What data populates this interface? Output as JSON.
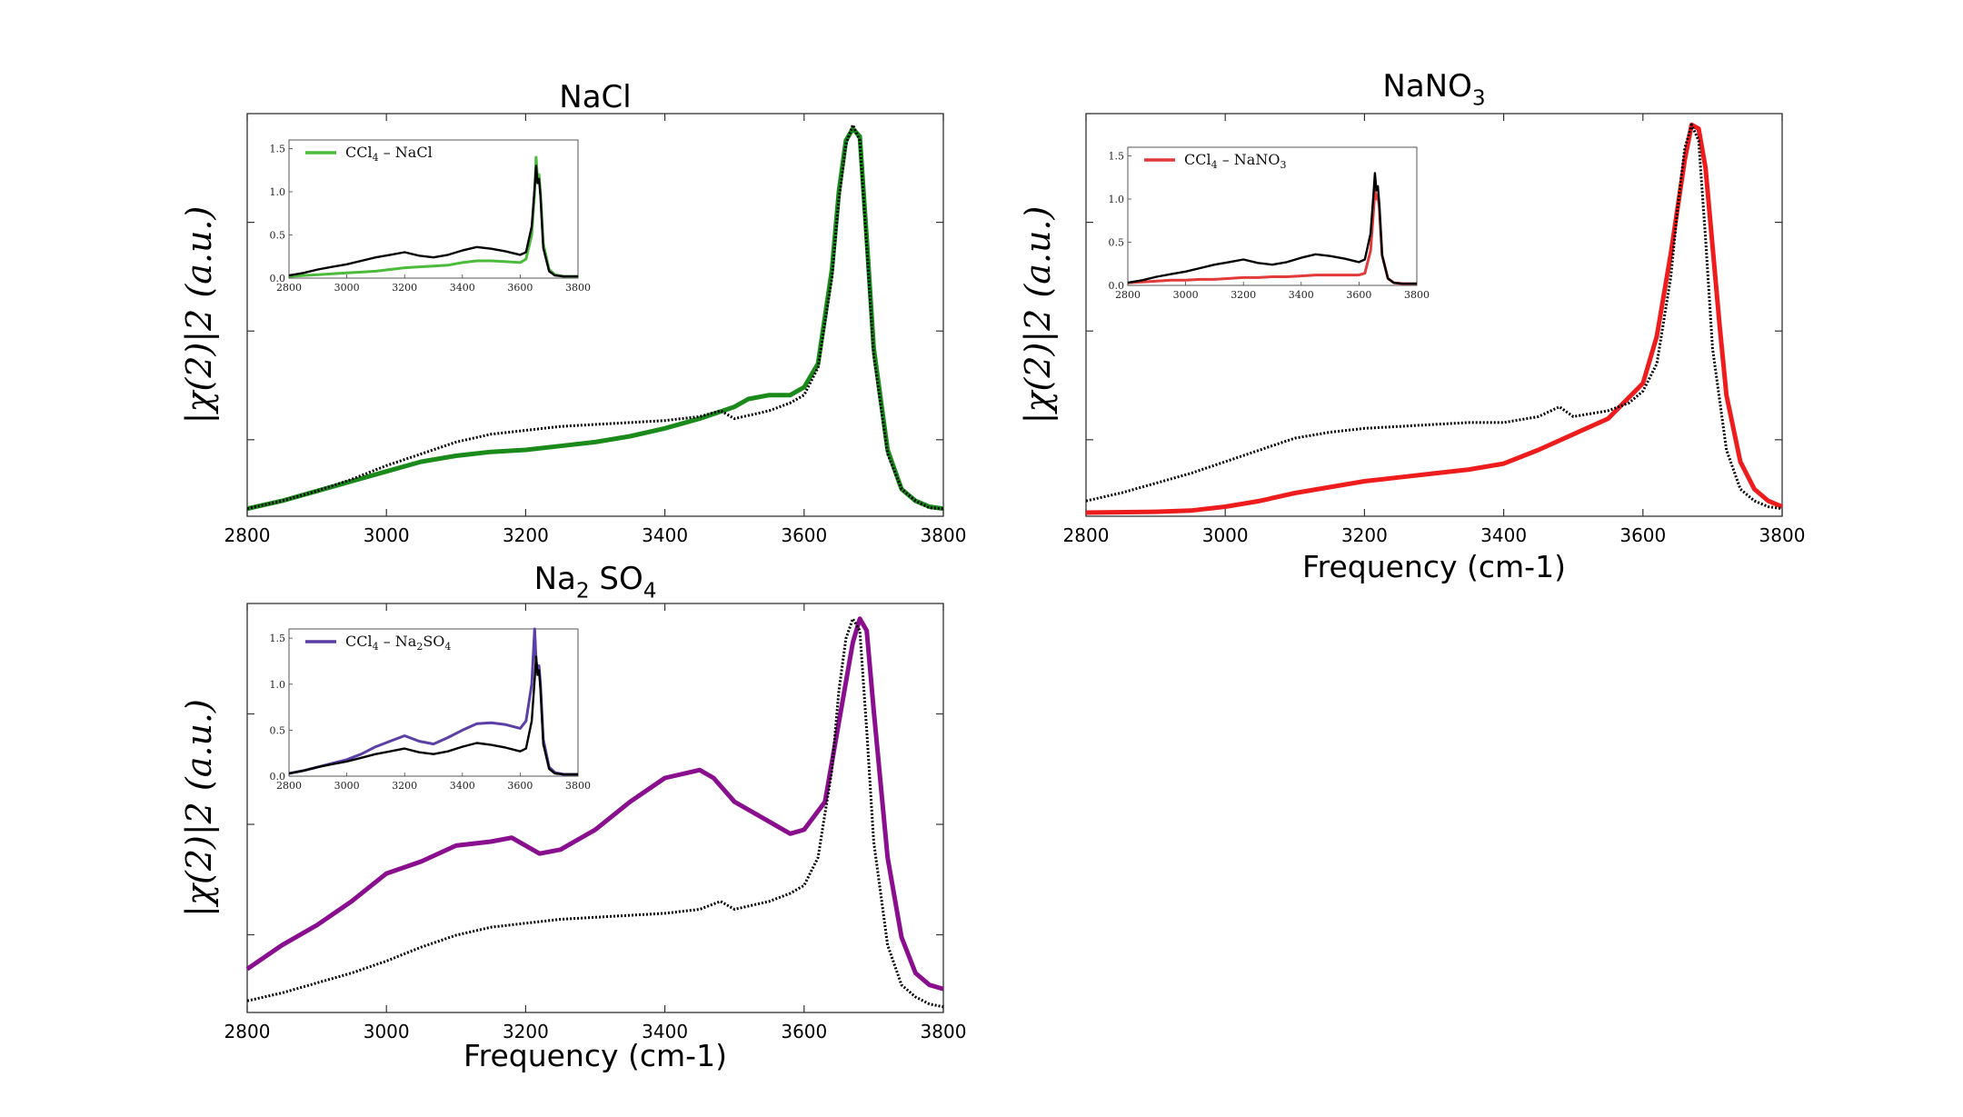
{
  "colors": {
    "nacl": "#1a8a1a",
    "nacl_inset": "#4cbb3c",
    "nano3": "#ee1c1c",
    "nano3_inset": "#e23a3a",
    "na2so4": "#8a0f8e",
    "na2so4_inset": "#5b3fa6",
    "reference": "#000000"
  },
  "chart_data": [
    {
      "id": "nacl",
      "type": "line",
      "title": "NaCl",
      "title_parts": [
        {
          "t": "NaCl",
          "sub": false
        }
      ],
      "xlabel": "",
      "ylabel": "|χ(2)|2 (a.u.)",
      "xlim": [
        2800,
        3800
      ],
      "ylim": [
        0,
        1.0
      ],
      "xticks": [
        "2800",
        "3000",
        "3200",
        "3400",
        "3600",
        "3800"
      ],
      "series": [
        {
          "role": "sample",
          "style": "solid",
          "x": [
            2800,
            2850,
            2900,
            2950,
            3000,
            3050,
            3100,
            3150,
            3200,
            3250,
            3300,
            3350,
            3400,
            3450,
            3500,
            3520,
            3550,
            3580,
            3600,
            3620,
            3640,
            3650,
            3660,
            3670,
            3680,
            3690,
            3700,
            3720,
            3740,
            3760,
            3780,
            3800
          ],
          "y": [
            0.01,
            0.03,
            0.055,
            0.08,
            0.105,
            0.13,
            0.145,
            0.155,
            0.16,
            0.17,
            0.18,
            0.195,
            0.215,
            0.24,
            0.27,
            0.29,
            0.3,
            0.3,
            0.32,
            0.38,
            0.62,
            0.82,
            0.95,
            0.98,
            0.96,
            0.7,
            0.42,
            0.16,
            0.06,
            0.03,
            0.015,
            0.01
          ]
        },
        {
          "role": "reference",
          "style": "dotted",
          "x": [
            2800,
            2850,
            2900,
            2950,
            3000,
            3050,
            3100,
            3150,
            3200,
            3250,
            3300,
            3350,
            3400,
            3450,
            3480,
            3500,
            3550,
            3580,
            3600,
            3620,
            3640,
            3650,
            3660,
            3670,
            3680,
            3690,
            3700,
            3720,
            3740,
            3760,
            3780,
            3800
          ],
          "y": [
            0.01,
            0.03,
            0.055,
            0.085,
            0.12,
            0.15,
            0.18,
            0.2,
            0.21,
            0.22,
            0.225,
            0.23,
            0.235,
            0.245,
            0.26,
            0.24,
            0.26,
            0.28,
            0.3,
            0.37,
            0.6,
            0.8,
            0.94,
            0.99,
            0.95,
            0.68,
            0.4,
            0.15,
            0.06,
            0.03,
            0.012,
            0.01
          ]
        }
      ],
      "inset": {
        "legend": "CCl4 – NaCl",
        "legend_parts": [
          {
            "t": "CCl",
            "sub": false
          },
          {
            "t": "4",
            "sub": true
          },
          {
            "t": " – NaCl",
            "sub": false
          }
        ],
        "xlim": [
          2800,
          3800
        ],
        "ylim": [
          0,
          1.6
        ],
        "xticks": [
          "2800",
          "3000",
          "3200",
          "3400",
          "3600",
          "3800"
        ],
        "yticks": [
          "0.0",
          "0.5",
          "1.0",
          "1.5"
        ],
        "series": [
          {
            "role": "sample",
            "x": [
              2800,
              2850,
              2900,
              2950,
              3000,
              3050,
              3100,
              3150,
              3200,
              3250,
              3300,
              3350,
              3400,
              3450,
              3500,
              3550,
              3600,
              3620,
              3640,
              3650,
              3655,
              3660,
              3665,
              3670,
              3680,
              3700,
              3720,
              3750,
              3800
            ],
            "y": [
              0.02,
              0.03,
              0.04,
              0.05,
              0.06,
              0.07,
              0.08,
              0.1,
              0.12,
              0.13,
              0.14,
              0.15,
              0.18,
              0.2,
              0.2,
              0.19,
              0.18,
              0.22,
              0.5,
              1.0,
              1.4,
              1.15,
              1.2,
              1.0,
              0.4,
              0.1,
              0.04,
              0.02,
              0.02
            ]
          },
          {
            "role": "reference",
            "x": [
              2800,
              2850,
              2900,
              2950,
              3000,
              3050,
              3100,
              3150,
              3200,
              3250,
              3300,
              3350,
              3400,
              3450,
              3500,
              3550,
              3600,
              3620,
              3640,
              3650,
              3655,
              3660,
              3665,
              3670,
              3680,
              3700,
              3720,
              3750,
              3800
            ],
            "y": [
              0.03,
              0.06,
              0.1,
              0.13,
              0.16,
              0.2,
              0.24,
              0.27,
              0.3,
              0.26,
              0.24,
              0.27,
              0.32,
              0.36,
              0.34,
              0.31,
              0.27,
              0.3,
              0.6,
              1.05,
              1.3,
              1.1,
              1.15,
              0.95,
              0.35,
              0.08,
              0.03,
              0.02,
              0.02
            ]
          }
        ]
      }
    },
    {
      "id": "nano3",
      "type": "line",
      "title": "NaNO3",
      "title_parts": [
        {
          "t": "NaNO",
          "sub": false
        },
        {
          "t": "3",
          "sub": true
        }
      ],
      "xlabel": "Frequency (cm-1)",
      "ylabel": "|χ(2)|2 (a.u.)",
      "xlim": [
        2800,
        3800
      ],
      "ylim": [
        0,
        1.0
      ],
      "xticks": [
        "2800",
        "3000",
        "3200",
        "3400",
        "3600",
        "3800"
      ],
      "series": [
        {
          "role": "sample",
          "style": "solid",
          "x": [
            2800,
            2900,
            2950,
            3000,
            3050,
            3100,
            3150,
            3200,
            3250,
            3300,
            3350,
            3400,
            3450,
            3500,
            3550,
            3600,
            3620,
            3640,
            3660,
            3670,
            3680,
            3690,
            3700,
            3710,
            3720,
            3740,
            3760,
            3780,
            3800
          ],
          "y": [
            0.0,
            0.002,
            0.005,
            0.015,
            0.03,
            0.05,
            0.065,
            0.08,
            0.09,
            0.1,
            0.11,
            0.125,
            0.16,
            0.2,
            0.24,
            0.33,
            0.45,
            0.66,
            0.9,
            0.99,
            0.98,
            0.88,
            0.68,
            0.48,
            0.3,
            0.13,
            0.06,
            0.03,
            0.015
          ]
        },
        {
          "role": "reference",
          "style": "dotted",
          "x": [
            2800,
            2850,
            2900,
            2950,
            3000,
            3050,
            3100,
            3150,
            3200,
            3250,
            3300,
            3350,
            3400,
            3450,
            3480,
            3500,
            3550,
            3580,
            3600,
            3620,
            3640,
            3650,
            3660,
            3670,
            3680,
            3690,
            3700,
            3720,
            3740,
            3760,
            3780,
            3800
          ],
          "y": [
            0.03,
            0.05,
            0.075,
            0.1,
            0.13,
            0.16,
            0.19,
            0.205,
            0.215,
            0.22,
            0.225,
            0.23,
            0.23,
            0.245,
            0.27,
            0.245,
            0.26,
            0.28,
            0.31,
            0.38,
            0.6,
            0.78,
            0.93,
            0.99,
            0.95,
            0.7,
            0.42,
            0.16,
            0.06,
            0.03,
            0.015,
            0.01
          ]
        }
      ],
      "inset": {
        "legend": "CCl4 – NaNO3",
        "legend_parts": [
          {
            "t": "CCl",
            "sub": false
          },
          {
            "t": "4",
            "sub": true
          },
          {
            "t": " – NaNO",
            "sub": false
          },
          {
            "t": "3",
            "sub": true
          }
        ],
        "xlim": [
          2800,
          3800
        ],
        "ylim": [
          0,
          1.6
        ],
        "xticks": [
          "2800",
          "3000",
          "3200",
          "3400",
          "3600",
          "3800"
        ],
        "yticks": [
          "0.0",
          "0.5",
          "1.0",
          "1.5"
        ],
        "series": [
          {
            "role": "sample",
            "x": [
              2800,
              2850,
              2900,
              2950,
              3000,
              3050,
              3100,
              3150,
              3200,
              3250,
              3300,
              3350,
              3400,
              3450,
              3500,
              3550,
              3600,
              3620,
              3640,
              3650,
              3655,
              3660,
              3665,
              3670,
              3680,
              3700,
              3720,
              3750,
              3800
            ],
            "y": [
              0.03,
              0.04,
              0.05,
              0.06,
              0.06,
              0.07,
              0.07,
              0.08,
              0.09,
              0.09,
              0.1,
              0.1,
              0.11,
              0.12,
              0.12,
              0.12,
              0.12,
              0.14,
              0.4,
              0.85,
              1.1,
              1.0,
              1.05,
              0.9,
              0.35,
              0.08,
              0.03,
              0.02,
              0.02
            ]
          },
          {
            "role": "reference",
            "x": [
              2800,
              2850,
              2900,
              2950,
              3000,
              3050,
              3100,
              3150,
              3200,
              3250,
              3300,
              3350,
              3400,
              3450,
              3500,
              3550,
              3600,
              3620,
              3640,
              3650,
              3655,
              3660,
              3665,
              3670,
              3680,
              3700,
              3720,
              3750,
              3800
            ],
            "y": [
              0.03,
              0.06,
              0.1,
              0.13,
              0.16,
              0.2,
              0.24,
              0.27,
              0.3,
              0.26,
              0.24,
              0.27,
              0.32,
              0.36,
              0.34,
              0.31,
              0.27,
              0.3,
              0.6,
              1.05,
              1.3,
              1.1,
              1.15,
              0.95,
              0.35,
              0.08,
              0.03,
              0.02,
              0.02
            ]
          }
        ]
      }
    },
    {
      "id": "na2so4",
      "type": "line",
      "title": "Na2SO4",
      "title_parts": [
        {
          "t": "Na",
          "sub": false
        },
        {
          "t": "2",
          "sub": true
        },
        {
          "t": " SO",
          "sub": false
        },
        {
          "t": "4",
          "sub": true
        }
      ],
      "xlabel": "Frequency (cm-1)",
      "ylabel": "|χ(2)|2 (a.u.)",
      "xlim": [
        2800,
        3800
      ],
      "ylim": [
        0,
        1.0
      ],
      "xticks": [
        "2800",
        "3000",
        "3200",
        "3400",
        "3600",
        "3800"
      ],
      "series": [
        {
          "role": "sample",
          "style": "solid",
          "x": [
            2800,
            2850,
            2900,
            2950,
            3000,
            3050,
            3100,
            3150,
            3180,
            3200,
            3220,
            3250,
            3300,
            3350,
            3400,
            3450,
            3470,
            3500,
            3550,
            3580,
            3600,
            3630,
            3650,
            3670,
            3680,
            3690,
            3700,
            3720,
            3740,
            3760,
            3780,
            3800
          ],
          "y": [
            0.1,
            0.16,
            0.21,
            0.27,
            0.34,
            0.37,
            0.41,
            0.42,
            0.43,
            0.41,
            0.39,
            0.4,
            0.45,
            0.52,
            0.58,
            0.6,
            0.58,
            0.52,
            0.47,
            0.44,
            0.45,
            0.52,
            0.72,
            0.92,
            0.98,
            0.95,
            0.75,
            0.38,
            0.18,
            0.09,
            0.06,
            0.05
          ]
        },
        {
          "role": "reference",
          "style": "dotted",
          "x": [
            2800,
            2850,
            2900,
            2950,
            3000,
            3050,
            3100,
            3150,
            3200,
            3250,
            3300,
            3350,
            3400,
            3450,
            3480,
            3500,
            3550,
            3580,
            3600,
            3620,
            3640,
            3650,
            3660,
            3670,
            3680,
            3690,
            3700,
            3720,
            3740,
            3760,
            3780,
            3800
          ],
          "y": [
            0.02,
            0.04,
            0.065,
            0.09,
            0.12,
            0.155,
            0.185,
            0.205,
            0.215,
            0.225,
            0.23,
            0.235,
            0.24,
            0.25,
            0.27,
            0.25,
            0.27,
            0.29,
            0.31,
            0.38,
            0.6,
            0.8,
            0.93,
            0.98,
            0.95,
            0.7,
            0.42,
            0.16,
            0.06,
            0.03,
            0.012,
            0.005
          ]
        }
      ],
      "inset": {
        "legend": "CCl4 – Na2SO4",
        "legend_parts": [
          {
            "t": "CCl",
            "sub": false
          },
          {
            "t": "4",
            "sub": true
          },
          {
            "t": " – Na",
            "sub": false
          },
          {
            "t": "2",
            "sub": true
          },
          {
            "t": "SO",
            "sub": false
          },
          {
            "t": "4",
            "sub": true
          }
        ],
        "xlim": [
          2800,
          3800
        ],
        "ylim": [
          0,
          1.6
        ],
        "xticks": [
          "2800",
          "3000",
          "3200",
          "3400",
          "3600",
          "3800"
        ],
        "yticks": [
          "0.0",
          "0.5",
          "1.0",
          "1.5"
        ],
        "series": [
          {
            "role": "sample",
            "x": [
              2800,
              2850,
              2900,
              2950,
              3000,
              3050,
              3100,
              3150,
              3200,
              3250,
              3300,
              3350,
              3400,
              3450,
              3500,
              3550,
              3600,
              3620,
              3640,
              3650,
              3655,
              3660,
              3665,
              3670,
              3680,
              3700,
              3720,
              3750,
              3800
            ],
            "y": [
              0.03,
              0.06,
              0.1,
              0.14,
              0.18,
              0.24,
              0.32,
              0.38,
              0.44,
              0.38,
              0.35,
              0.42,
              0.5,
              0.57,
              0.58,
              0.56,
              0.52,
              0.6,
              1.0,
              1.6,
              1.25,
              1.15,
              1.2,
              1.0,
              0.4,
              0.1,
              0.04,
              0.02,
              0.02
            ]
          },
          {
            "role": "reference",
            "x": [
              2800,
              2850,
              2900,
              2950,
              3000,
              3050,
              3100,
              3150,
              3200,
              3250,
              3300,
              3350,
              3400,
              3450,
              3500,
              3550,
              3600,
              3620,
              3640,
              3650,
              3655,
              3660,
              3665,
              3670,
              3680,
              3700,
              3720,
              3750,
              3800
            ],
            "y": [
              0.03,
              0.06,
              0.1,
              0.13,
              0.16,
              0.2,
              0.24,
              0.27,
              0.3,
              0.26,
              0.24,
              0.27,
              0.32,
              0.36,
              0.34,
              0.31,
              0.27,
              0.3,
              0.6,
              1.05,
              1.3,
              1.1,
              1.15,
              0.95,
              0.35,
              0.08,
              0.03,
              0.02,
              0.02
            ]
          }
        ]
      }
    }
  ]
}
